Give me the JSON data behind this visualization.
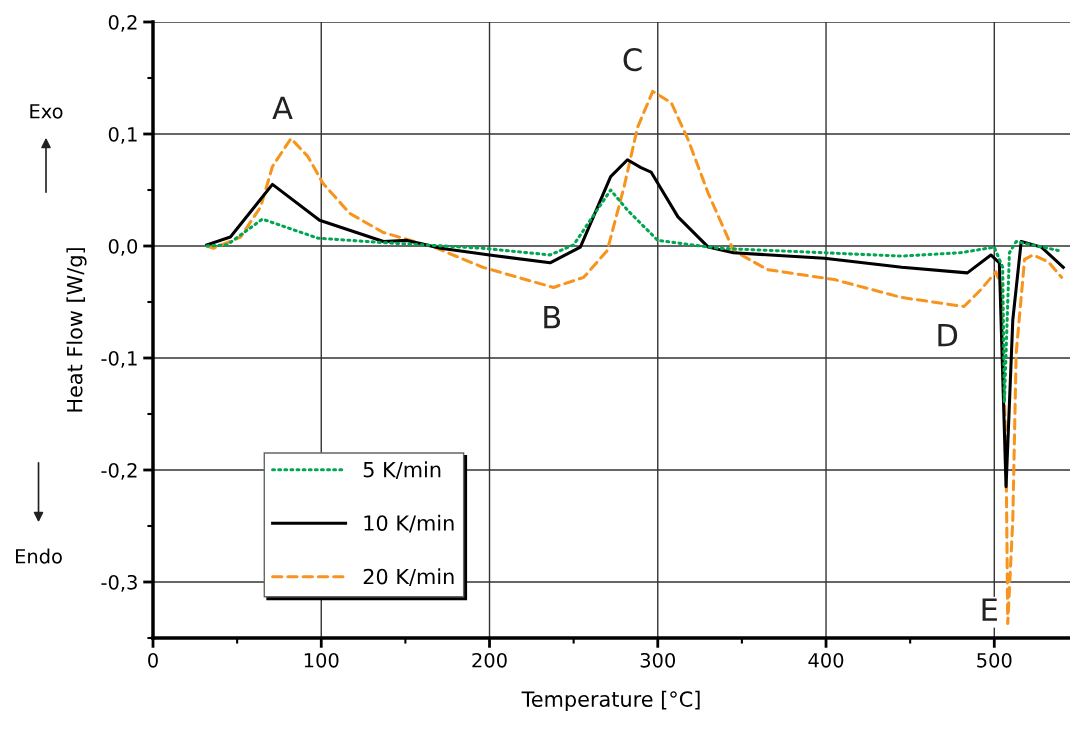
{
  "chart_data": {
    "type": "line",
    "xlabel": "Temperature [°C]",
    "ylabel": "Heat Flow [W/g]",
    "xlim": [
      0,
      545
    ],
    "ylim": [
      -0.35,
      0.2
    ],
    "xticks": [
      0,
      100,
      200,
      300,
      400,
      500
    ],
    "yticks": [
      {
        "value": 0.2,
        "label": "0,2"
      },
      {
        "value": 0.1,
        "label": "0,1"
      },
      {
        "value": 0.0,
        "label": "0,0"
      },
      {
        "value": -0.1,
        "label": "-0,1"
      },
      {
        "value": -0.2,
        "label": "-0,2"
      },
      {
        "value": -0.3,
        "label": "-0,3"
      }
    ],
    "grid": true,
    "legend": "bottom left",
    "series": [
      {
        "name": "5 K/min",
        "color": "#00a651",
        "line_style": "dotted",
        "x": [
          32,
          44,
          65,
          98,
          137,
          196,
          236,
          250,
          272,
          282,
          300,
          336,
          445,
          480,
          500,
          505,
          506,
          509,
          513,
          538
        ],
        "values": [
          0.0,
          0.001,
          0.024,
          0.007,
          0.003,
          -0.002,
          -0.008,
          0.001,
          0.05,
          0.032,
          0.005,
          -0.002,
          -0.009,
          -0.006,
          -0.001,
          -0.019,
          -0.14,
          -0.006,
          0.004,
          -0.004
        ]
      },
      {
        "name": "10 K/min",
        "color": "#000000",
        "line_style": "solid",
        "x": [
          32,
          46,
          71,
          99,
          137,
          151,
          171,
          200,
          236,
          254,
          272,
          282,
          290,
          296,
          312,
          330,
          345,
          399,
          445,
          484,
          498,
          503,
          507,
          511,
          516,
          528,
          541
        ],
        "values": [
          0.001,
          0.008,
          0.055,
          0.023,
          0.004,
          0.005,
          -0.002,
          -0.008,
          -0.015,
          -0.001,
          0.062,
          0.077,
          0.07,
          0.066,
          0.026,
          -0.001,
          -0.006,
          -0.011,
          -0.019,
          -0.024,
          -0.008,
          -0.015,
          -0.215,
          -0.066,
          0.004,
          -0.001,
          -0.019
        ]
      },
      {
        "name": "20 K/min",
        "color": "#f7941d",
        "line_style": "dashed",
        "x": [
          32,
          36,
          52,
          64,
          71,
          82,
          92,
          101,
          117,
          137,
          167,
          196,
          238,
          256,
          270,
          280,
          288,
          297,
          308,
          318,
          330,
          345,
          365,
          405,
          445,
          482,
          492,
          501,
          504,
          507,
          508,
          511,
          513,
          518,
          523,
          532,
          540
        ],
        "values": [
          0.0,
          -0.002,
          0.008,
          0.035,
          0.071,
          0.096,
          0.08,
          0.056,
          0.029,
          0.012,
          -0.001,
          -0.019,
          -0.037,
          -0.028,
          -0.004,
          0.053,
          0.106,
          0.138,
          0.128,
          0.095,
          0.047,
          -0.004,
          -0.021,
          -0.03,
          -0.046,
          -0.054,
          -0.039,
          -0.023,
          -0.036,
          -0.185,
          -0.337,
          -0.245,
          -0.096,
          -0.012,
          -0.008,
          -0.014,
          -0.028
        ]
      }
    ],
    "annotations": [
      {
        "text": "A",
        "x": 77,
        "y": 0.121
      },
      {
        "text": "B",
        "x": 237,
        "y": -0.066
      },
      {
        "text": "C",
        "x": 285,
        "y": 0.164
      },
      {
        "text": "D",
        "x": 472,
        "y": -0.082
      },
      {
        "text": "E",
        "x": 497,
        "y": -0.327
      },
      "Exo",
      "Endo"
    ]
  }
}
